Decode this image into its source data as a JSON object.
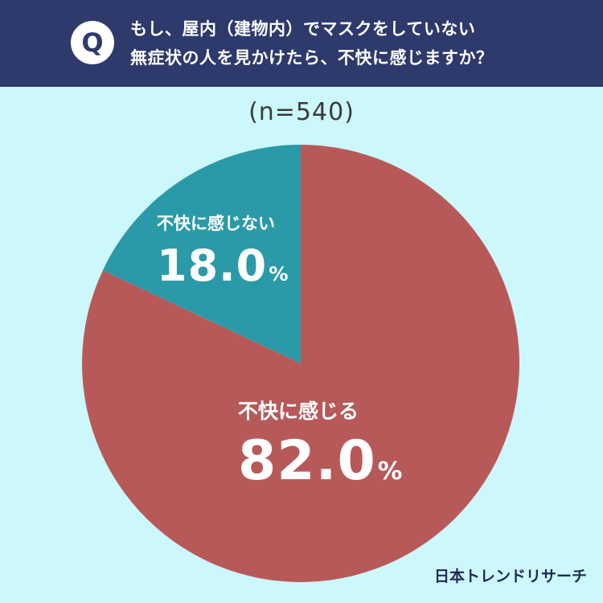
{
  "header": {
    "badge": "Q",
    "question_line1": "もし、屋内（建物内）でマスクをしていない",
    "question_line2": "無症状の人を見かけたら、不快に感じますか？"
  },
  "sample_size": "(n=540)",
  "logo": "日本トレンドリサーチ",
  "chart_data": {
    "type": "pie",
    "title": "もし、屋内（建物内）でマスクをしていない無症状の人を見かけたら、不快に感じますか？",
    "n": 540,
    "unit": "%",
    "slices": [
      {
        "label": "不快に感じる",
        "value": 82.0,
        "value_text": "82.0",
        "color": "#b85959"
      },
      {
        "label": "不快に感じない",
        "value": 18.0,
        "value_text": "18.0",
        "color": "#2b9aa8"
      }
    ]
  }
}
